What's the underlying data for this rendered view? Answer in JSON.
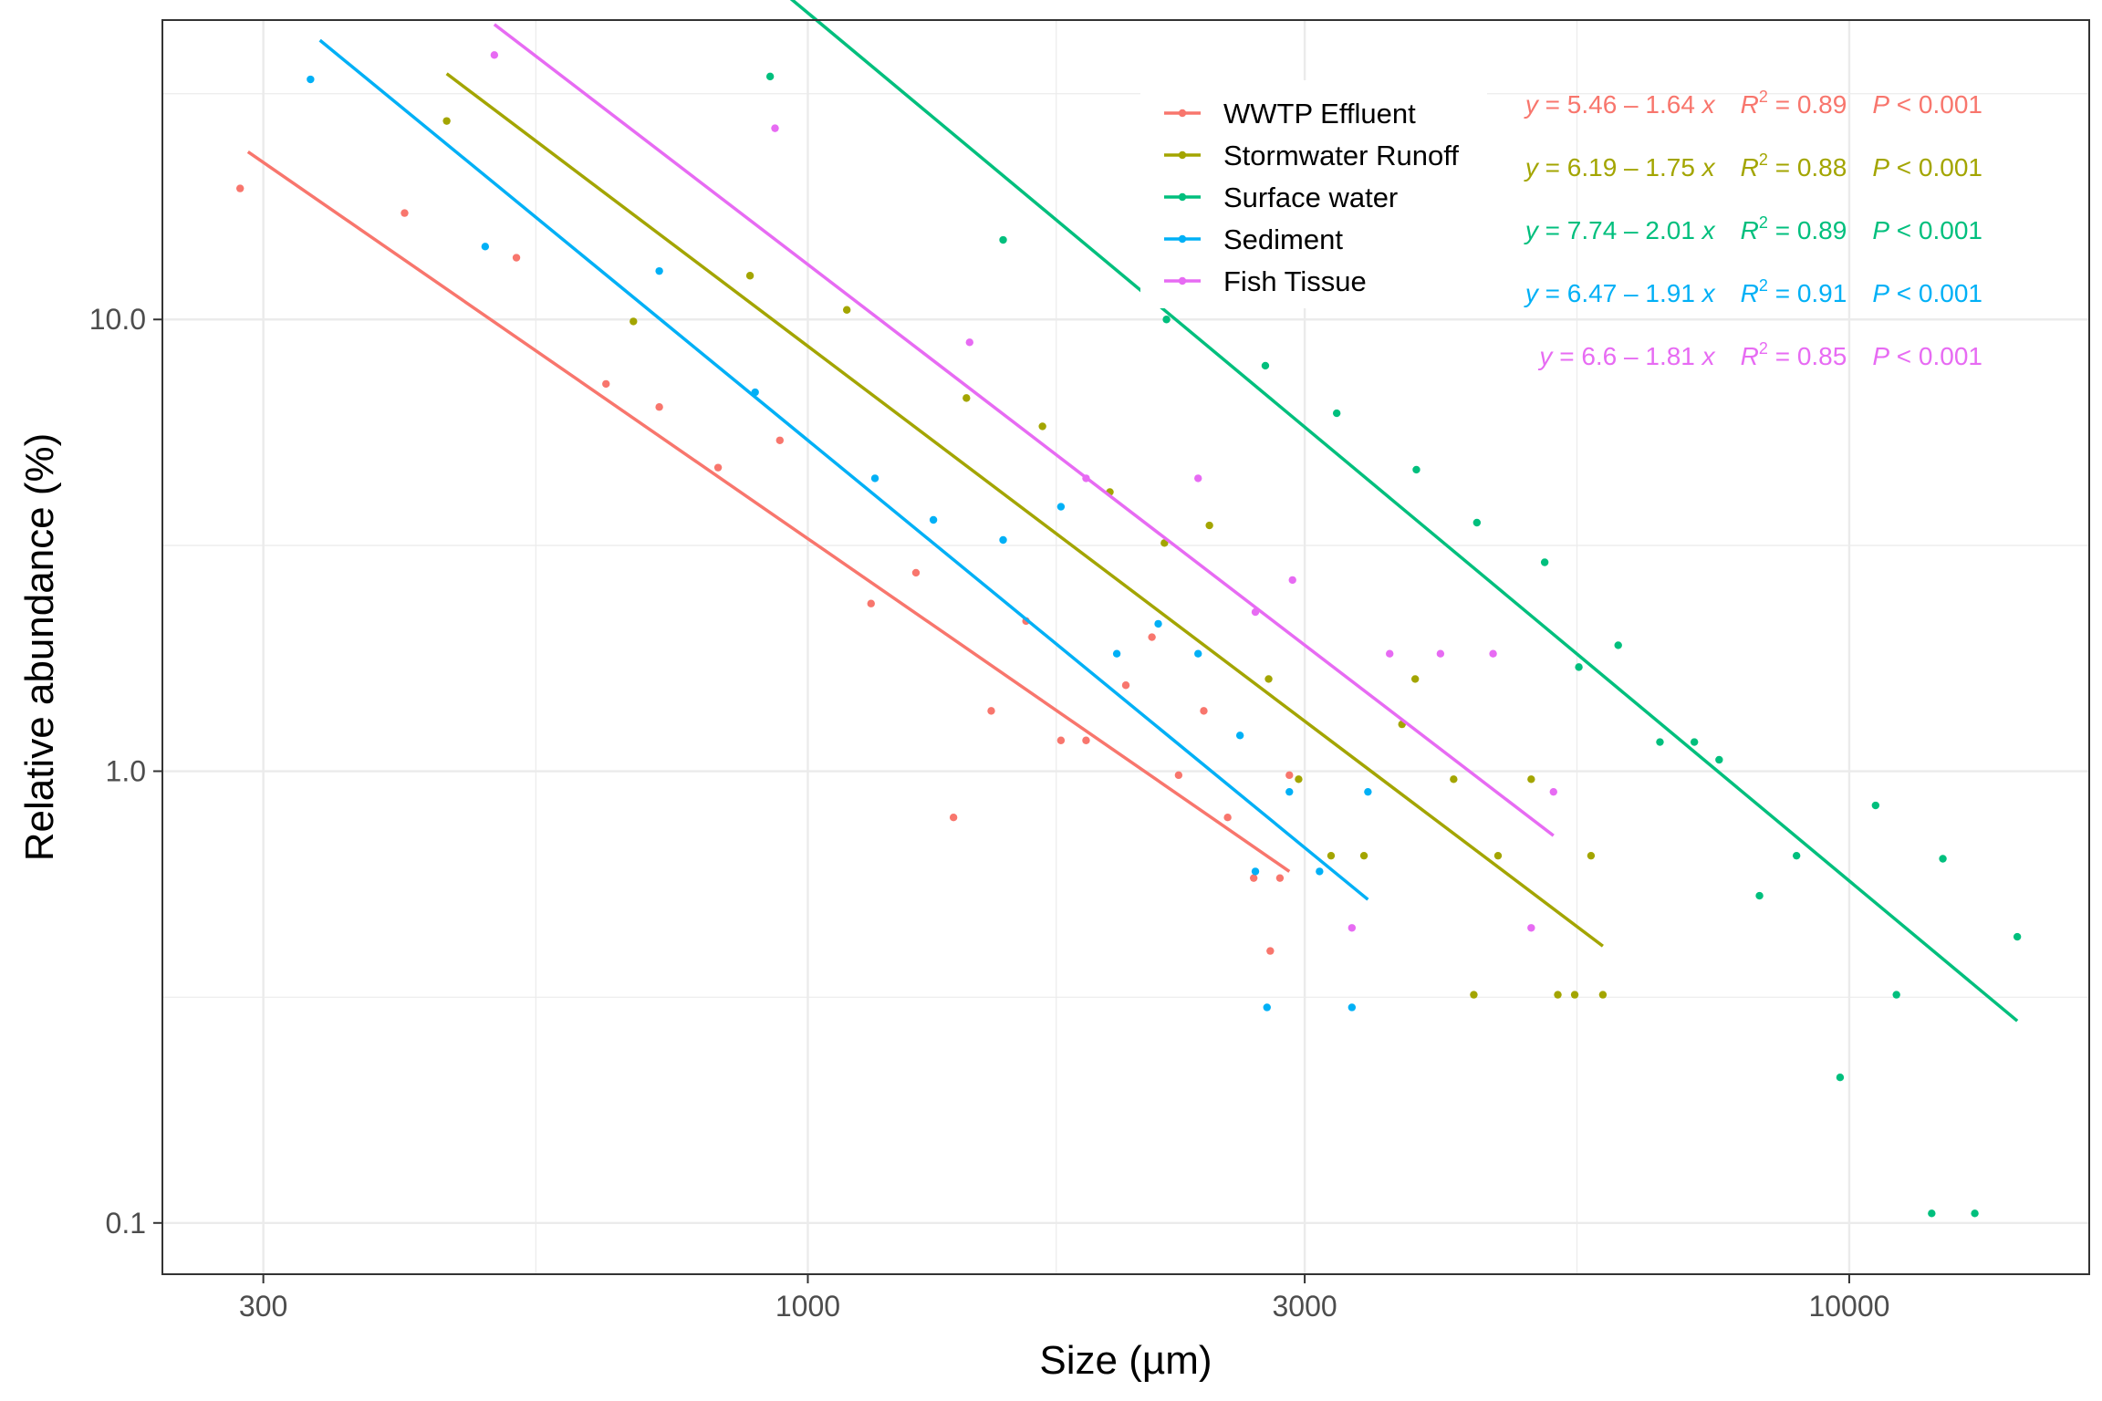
{
  "chart_data": {
    "type": "scatter",
    "xlabel": "Size (µm)",
    "ylabel": "Relative abundance (%)",
    "x_scale": "log",
    "y_scale": "log",
    "xlim": [
      240,
      17000
    ],
    "ylim": [
      0.077,
      46
    ],
    "x_ticks": [
      {
        "value": 300,
        "label": "300"
      },
      {
        "value": 1000,
        "label": "1000"
      },
      {
        "value": 3000,
        "label": "3000"
      },
      {
        "value": 10000,
        "label": "10000"
      }
    ],
    "x_minor_ticks": [
      548,
      1732,
      5477
    ],
    "y_ticks": [
      {
        "value": 0.1,
        "label": "0.1"
      },
      {
        "value": 1.0,
        "label": "1.0"
      },
      {
        "value": 10.0,
        "label": "10.0"
      }
    ],
    "y_minor_ticks": [
      0.316,
      3.16,
      31.6
    ],
    "grid": true,
    "legend_position": "top-center",
    "series": [
      {
        "name": "WWTP Effluent",
        "color": "#F8766D",
        "equation": {
          "y": "y",
          "eq": " = 5.46 – 1.64 ",
          "x": "x",
          "r": "R",
          "rsup": "2",
          "rval": " = 0.89",
          "p": "P",
          "pval": " < 0.001"
        },
        "line": [
          [
            290,
            23.5
          ],
          [
            2900,
            0.6
          ]
        ],
        "points": [
          [
            285,
            19.5
          ],
          [
            410,
            17.2
          ],
          [
            525,
            13.7
          ],
          [
            640,
            7.2
          ],
          [
            720,
            6.4
          ],
          [
            820,
            4.7
          ],
          [
            940,
            5.4
          ],
          [
            1150,
            2.35
          ],
          [
            1270,
            2.75
          ],
          [
            1380,
            0.79
          ],
          [
            1500,
            1.36
          ],
          [
            1620,
            2.15
          ],
          [
            1750,
            1.17
          ],
          [
            1850,
            1.17
          ],
          [
            2020,
            1.55
          ],
          [
            2140,
            1.98
          ],
          [
            2270,
            0.98
          ],
          [
            2400,
            1.36
          ],
          [
            2530,
            0.79
          ],
          [
            2680,
            0.58
          ],
          [
            2780,
            0.4
          ],
          [
            2840,
            0.58
          ],
          [
            2900,
            0.98
          ]
        ]
      },
      {
        "name": "Stormwater Runoff",
        "color": "#A3A500",
        "equation": {
          "y": "y",
          "eq": " = 6.19 – 1.75 ",
          "x": "x",
          "r": "R",
          "rsup": "2",
          "rval": " = 0.88",
          "p": "P",
          "pval": " < 0.001"
        },
        "line": [
          [
            450,
            35
          ],
          [
            5800,
            0.41
          ]
        ],
        "points": [
          [
            450,
            27.5
          ],
          [
            680,
            9.9
          ],
          [
            880,
            12.5
          ],
          [
            1090,
            10.5
          ],
          [
            1420,
            6.7
          ],
          [
            1680,
            5.8
          ],
          [
            1950,
            4.15
          ],
          [
            2200,
            3.2
          ],
          [
            2430,
            3.5
          ],
          [
            2770,
            1.6
          ],
          [
            2960,
            0.96
          ],
          [
            3180,
            0.65
          ],
          [
            3420,
            0.65
          ],
          [
            3720,
            1.27
          ],
          [
            3830,
            1.6
          ],
          [
            4170,
            0.96
          ],
          [
            4360,
            0.32
          ],
          [
            4600,
            0.65
          ],
          [
            4950,
            0.96
          ],
          [
            5250,
            0.32
          ],
          [
            5450,
            0.32
          ],
          [
            5650,
            0.65
          ],
          [
            5800,
            0.32
          ]
        ]
      },
      {
        "name": "Surface water",
        "color": "#00BF7D",
        "equation": {
          "y": "y",
          "eq": " = 7.74 – 2.01 ",
          "x": "x",
          "r": "R",
          "rsup": "2",
          "rval": " = 0.89",
          "p": "P",
          "pval": " < 0.001"
        },
        "line": [
          [
            920,
            56
          ],
          [
            14500,
            0.28
          ]
        ],
        "points": [
          [
            920,
            34.5
          ],
          [
            1540,
            15
          ],
          [
            2210,
            10
          ],
          [
            2750,
            7.9
          ],
          [
            3220,
            6.2
          ],
          [
            3840,
            4.65
          ],
          [
            4390,
            3.55
          ],
          [
            5100,
            2.9
          ],
          [
            5500,
            1.7
          ],
          [
            6000,
            1.9
          ],
          [
            6580,
            1.16
          ],
          [
            7100,
            1.16
          ],
          [
            7500,
            1.06
          ],
          [
            8200,
            0.53
          ],
          [
            8900,
            0.65
          ],
          [
            9800,
            0.21
          ],
          [
            10600,
            0.84
          ],
          [
            11100,
            0.32
          ],
          [
            12000,
            0.105
          ],
          [
            12300,
            0.64
          ],
          [
            13200,
            0.105
          ],
          [
            14500,
            0.43
          ]
        ]
      },
      {
        "name": "Sediment",
        "color": "#00B0F6",
        "equation": {
          "y": "y",
          "eq": " = 6.47 – 1.91 ",
          "x": "x",
          "r": "R",
          "rsup": "2",
          "rval": " = 0.91",
          "p": "P",
          "pval": " < 0.001"
        },
        "line": [
          [
            340,
            41.5
          ],
          [
            3450,
            0.52
          ]
        ],
        "points": [
          [
            333,
            34
          ],
          [
            490,
            14.5
          ],
          [
            720,
            12.8
          ],
          [
            890,
            6.9
          ],
          [
            1160,
            4.45
          ],
          [
            1320,
            3.6
          ],
          [
            1540,
            3.25
          ],
          [
            1750,
            3.85
          ],
          [
            1980,
            1.82
          ],
          [
            2170,
            2.12
          ],
          [
            2370,
            1.82
          ],
          [
            2600,
            1.2
          ],
          [
            2690,
            0.6
          ],
          [
            2760,
            0.3
          ],
          [
            2900,
            0.9
          ],
          [
            3100,
            0.6
          ],
          [
            3330,
            0.3
          ],
          [
            3450,
            0.9
          ]
        ]
      },
      {
        "name": "Fish Tissue",
        "color": "#E76BF3",
        "equation": {
          "y": "y",
          "eq": " = 6.6 – 1.81 ",
          "x": "x",
          "r": "R",
          "rsup": "2",
          "rval": " = 0.85",
          "p": "P",
          "pval": " < 0.001"
        },
        "line": [
          [
            500,
            45
          ],
          [
            5200,
            0.72
          ]
        ],
        "points": [
          [
            500,
            38.5
          ],
          [
            930,
            26.5
          ],
          [
            1430,
            8.9
          ],
          [
            1850,
            4.45
          ],
          [
            2370,
            4.45
          ],
          [
            2690,
            2.25
          ],
          [
            2920,
            2.65
          ],
          [
            3330,
            0.45
          ],
          [
            3620,
            1.82
          ],
          [
            4050,
            1.82
          ],
          [
            4550,
            1.82
          ],
          [
            4950,
            0.45
          ],
          [
            5200,
            0.9
          ]
        ]
      }
    ]
  }
}
